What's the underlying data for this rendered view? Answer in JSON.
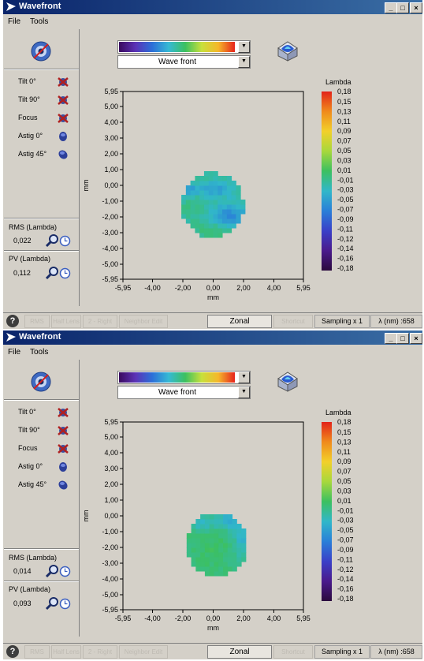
{
  "windows": [
    {
      "title": "Wavefront",
      "menu": [
        "File",
        "Tools"
      ],
      "zernike": [
        {
          "label": "Tilt 0°",
          "icon": "tilt-0-disabled-icon"
        },
        {
          "label": "Tilt 90°",
          "icon": "tilt-90-disabled-icon"
        },
        {
          "label": "Focus",
          "icon": "focus-disabled-icon"
        },
        {
          "label": "Astig 0°",
          "icon": "astig-0-icon"
        },
        {
          "label": "Astig 45°",
          "icon": "astig-45-icon"
        }
      ],
      "rms_label": "RMS (Lambda)",
      "rms_value": "0,022",
      "pv_label": "PV (Lambda)",
      "pv_value": "0,112",
      "view_select": "Wave front",
      "statusbar": {
        "buttons": [
          "RMS",
          "Half Lens",
          "2 - Right",
          "Neighbor Edit",
          "Zonal",
          "Shortcut",
          "Sampling x 1",
          "λ (nm) :658"
        ],
        "active": "Zonal"
      },
      "chart_data": {
        "type": "heatmap",
        "xlabel": "mm",
        "ylabel": "mm",
        "x_ticks": [
          "-5,95",
          "-4,00",
          "-2,00",
          "0,00",
          "2,00",
          "4,00",
          "5,95"
        ],
        "y_ticks": [
          "5,95",
          "5,00",
          "4,00",
          "3,00",
          "2,00",
          "1,00",
          "0,00",
          "-1,00",
          "-2,00",
          "-3,00",
          "-4,00",
          "-5,00",
          "-5,95"
        ],
        "xlim": [
          -5.95,
          5.95
        ],
        "ylim": [
          -5.95,
          5.95
        ],
        "colorbar_title": "Lambda",
        "colorbar_ticks": [
          "0,18",
          "0,15",
          "0,13",
          "0,11",
          "0,09",
          "0,07",
          "0,05",
          "0,03",
          "0,01",
          "-0,01",
          "-0,03",
          "-0,05",
          "-0,07",
          "-0,09",
          "-0,11",
          "-0,12",
          "-0,14",
          "-0,16",
          "-0,18"
        ],
        "colorbar_range": [
          -0.18,
          0.18
        ],
        "colormap": [
          "#2b0a3d",
          "#4a1a8c",
          "#3a40c8",
          "#2a7fd8",
          "#31b7c9",
          "#3cc060",
          "#a8d83c",
          "#f2d02a",
          "#f08a1c",
          "#e2231a"
        ],
        "pupil": {
          "center": [
            -0.05,
            -1.25
          ],
          "radius": 2.05
        },
        "sample_step": 0.3,
        "field": {
          "base": -0.005,
          "terms": [
            {
              "type": "gauss",
              "cx": 1.1,
              "cy": -1.9,
              "sx": 0.8,
              "sy": 0.5,
              "amp": -0.045
            },
            {
              "type": "gauss",
              "cx": -1.3,
              "cy": -1.2,
              "sx": 0.6,
              "sy": 0.6,
              "amp": 0.012
            },
            {
              "type": "gauss",
              "cx": 0.1,
              "cy": -0.25,
              "sx": 0.9,
              "sy": 0.35,
              "amp": -0.03
            },
            {
              "type": "gauss",
              "cx": -1.5,
              "cy": -0.3,
              "sx": 0.4,
              "sy": 0.3,
              "amp": -0.03
            },
            {
              "type": "gauss",
              "cx": 0.0,
              "cy": -2.9,
              "sx": 0.8,
              "sy": 0.35,
              "amp": 0.018
            }
          ],
          "noise": 0.007
        }
      }
    },
    {
      "title": "Wavefront",
      "menu": [
        "File",
        "Tools"
      ],
      "zernike": [
        {
          "label": "Tilt 0°",
          "icon": "tilt-0-disabled-icon"
        },
        {
          "label": "Tilt 90°",
          "icon": "tilt-90-disabled-icon"
        },
        {
          "label": "Focus",
          "icon": "focus-disabled-icon"
        },
        {
          "label": "Astig 0°",
          "icon": "astig-0-icon"
        },
        {
          "label": "Astig 45°",
          "icon": "astig-45-icon"
        }
      ],
      "rms_label": "RMS (Lambda)",
      "rms_value": "0,014",
      "pv_label": "PV (Lambda)",
      "pv_value": "0,093",
      "view_select": "Wave front",
      "statusbar": {
        "buttons": [
          "RMS",
          "Half Lens",
          "2 - Right",
          "Neighbor Edit",
          "Zonal",
          "Shortcut",
          "Sampling x 1",
          "λ (nm) :658"
        ],
        "active": "Zonal"
      },
      "chart_data": {
        "type": "heatmap",
        "xlabel": "mm",
        "ylabel": "mm",
        "x_ticks": [
          "-5,95",
          "-4,00",
          "-2,00",
          "0,00",
          "2,00",
          "4,00",
          "5,95"
        ],
        "y_ticks": [
          "5,95",
          "5,00",
          "4,00",
          "3,00",
          "2,00",
          "1,00",
          "0,00",
          "-1,00",
          "-2,00",
          "-3,00",
          "-4,00",
          "-5,00",
          "-5,95"
        ],
        "xlim": [
          -5.95,
          5.95
        ],
        "ylim": [
          -5.95,
          5.95
        ],
        "colorbar_title": "Lambda",
        "colorbar_ticks": [
          "0,18",
          "0,15",
          "0,13",
          "0,11",
          "0,09",
          "0,07",
          "0,05",
          "0,03",
          "0,01",
          "-0,01",
          "-0,03",
          "-0,05",
          "-0,07",
          "-0,09",
          "-0,11",
          "-0,12",
          "-0,14",
          "-0,16",
          "-0,18"
        ],
        "colorbar_range": [
          -0.18,
          0.18
        ],
        "colormap": [
          "#2b0a3d",
          "#4a1a8c",
          "#3a40c8",
          "#2a7fd8",
          "#31b7c9",
          "#3cc060",
          "#a8d83c",
          "#f2d02a",
          "#f08a1c",
          "#e2231a"
        ],
        "pupil": {
          "center": [
            0.25,
            -1.8
          ],
          "radius": 2.0
        },
        "sample_step": 0.3,
        "field": {
          "base": 0.008,
          "terms": [
            {
              "type": "gauss",
              "cx": 1.0,
              "cy": -0.3,
              "sx": 0.7,
              "sy": 0.4,
              "amp": -0.035
            },
            {
              "type": "gauss",
              "cx": -0.8,
              "cy": -0.5,
              "sx": 0.5,
              "sy": 0.4,
              "amp": -0.025
            },
            {
              "type": "gauss",
              "cx": 1.9,
              "cy": -1.5,
              "sx": 0.4,
              "sy": 0.8,
              "amp": -0.03
            },
            {
              "type": "gauss",
              "cx": -0.2,
              "cy": -2.0,
              "sx": 0.9,
              "sy": 0.9,
              "amp": 0.01
            }
          ],
          "noise": 0.006
        }
      }
    }
  ]
}
